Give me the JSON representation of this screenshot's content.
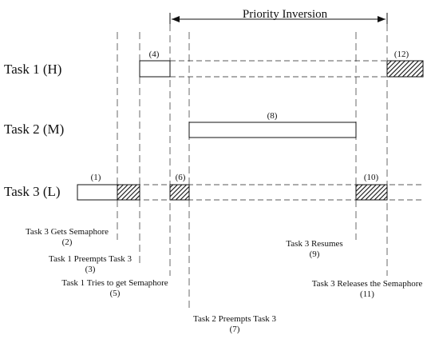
{
  "header": {
    "title": "Priority Inversion"
  },
  "tasks": {
    "high": "Task 1 (H)",
    "medium": "Task 2 (M)",
    "low": "Task 3 (L)"
  },
  "markers": {
    "m1": "(1)",
    "m4": "(4)",
    "m6": "(6)",
    "m8": "(8)",
    "m10": "(10)",
    "m12": "(12)"
  },
  "annotations": {
    "a2": {
      "text": "Task 3 Gets Semaphore",
      "num": "(2)"
    },
    "a3": {
      "text": "Task 1 Preempts Task 3",
      "num": "(3)"
    },
    "a5": {
      "text": "Task 1 Tries to get Semaphore",
      "num": "(5)"
    },
    "a7": {
      "text": "Task 2 Preempts Task 3",
      "num": "(7)"
    },
    "a9": {
      "text": "Task 3 Resumes",
      "num": "(9)"
    },
    "a11": {
      "text": "Task 3 Releases the Semaphore",
      "num": "(11)"
    }
  }
}
